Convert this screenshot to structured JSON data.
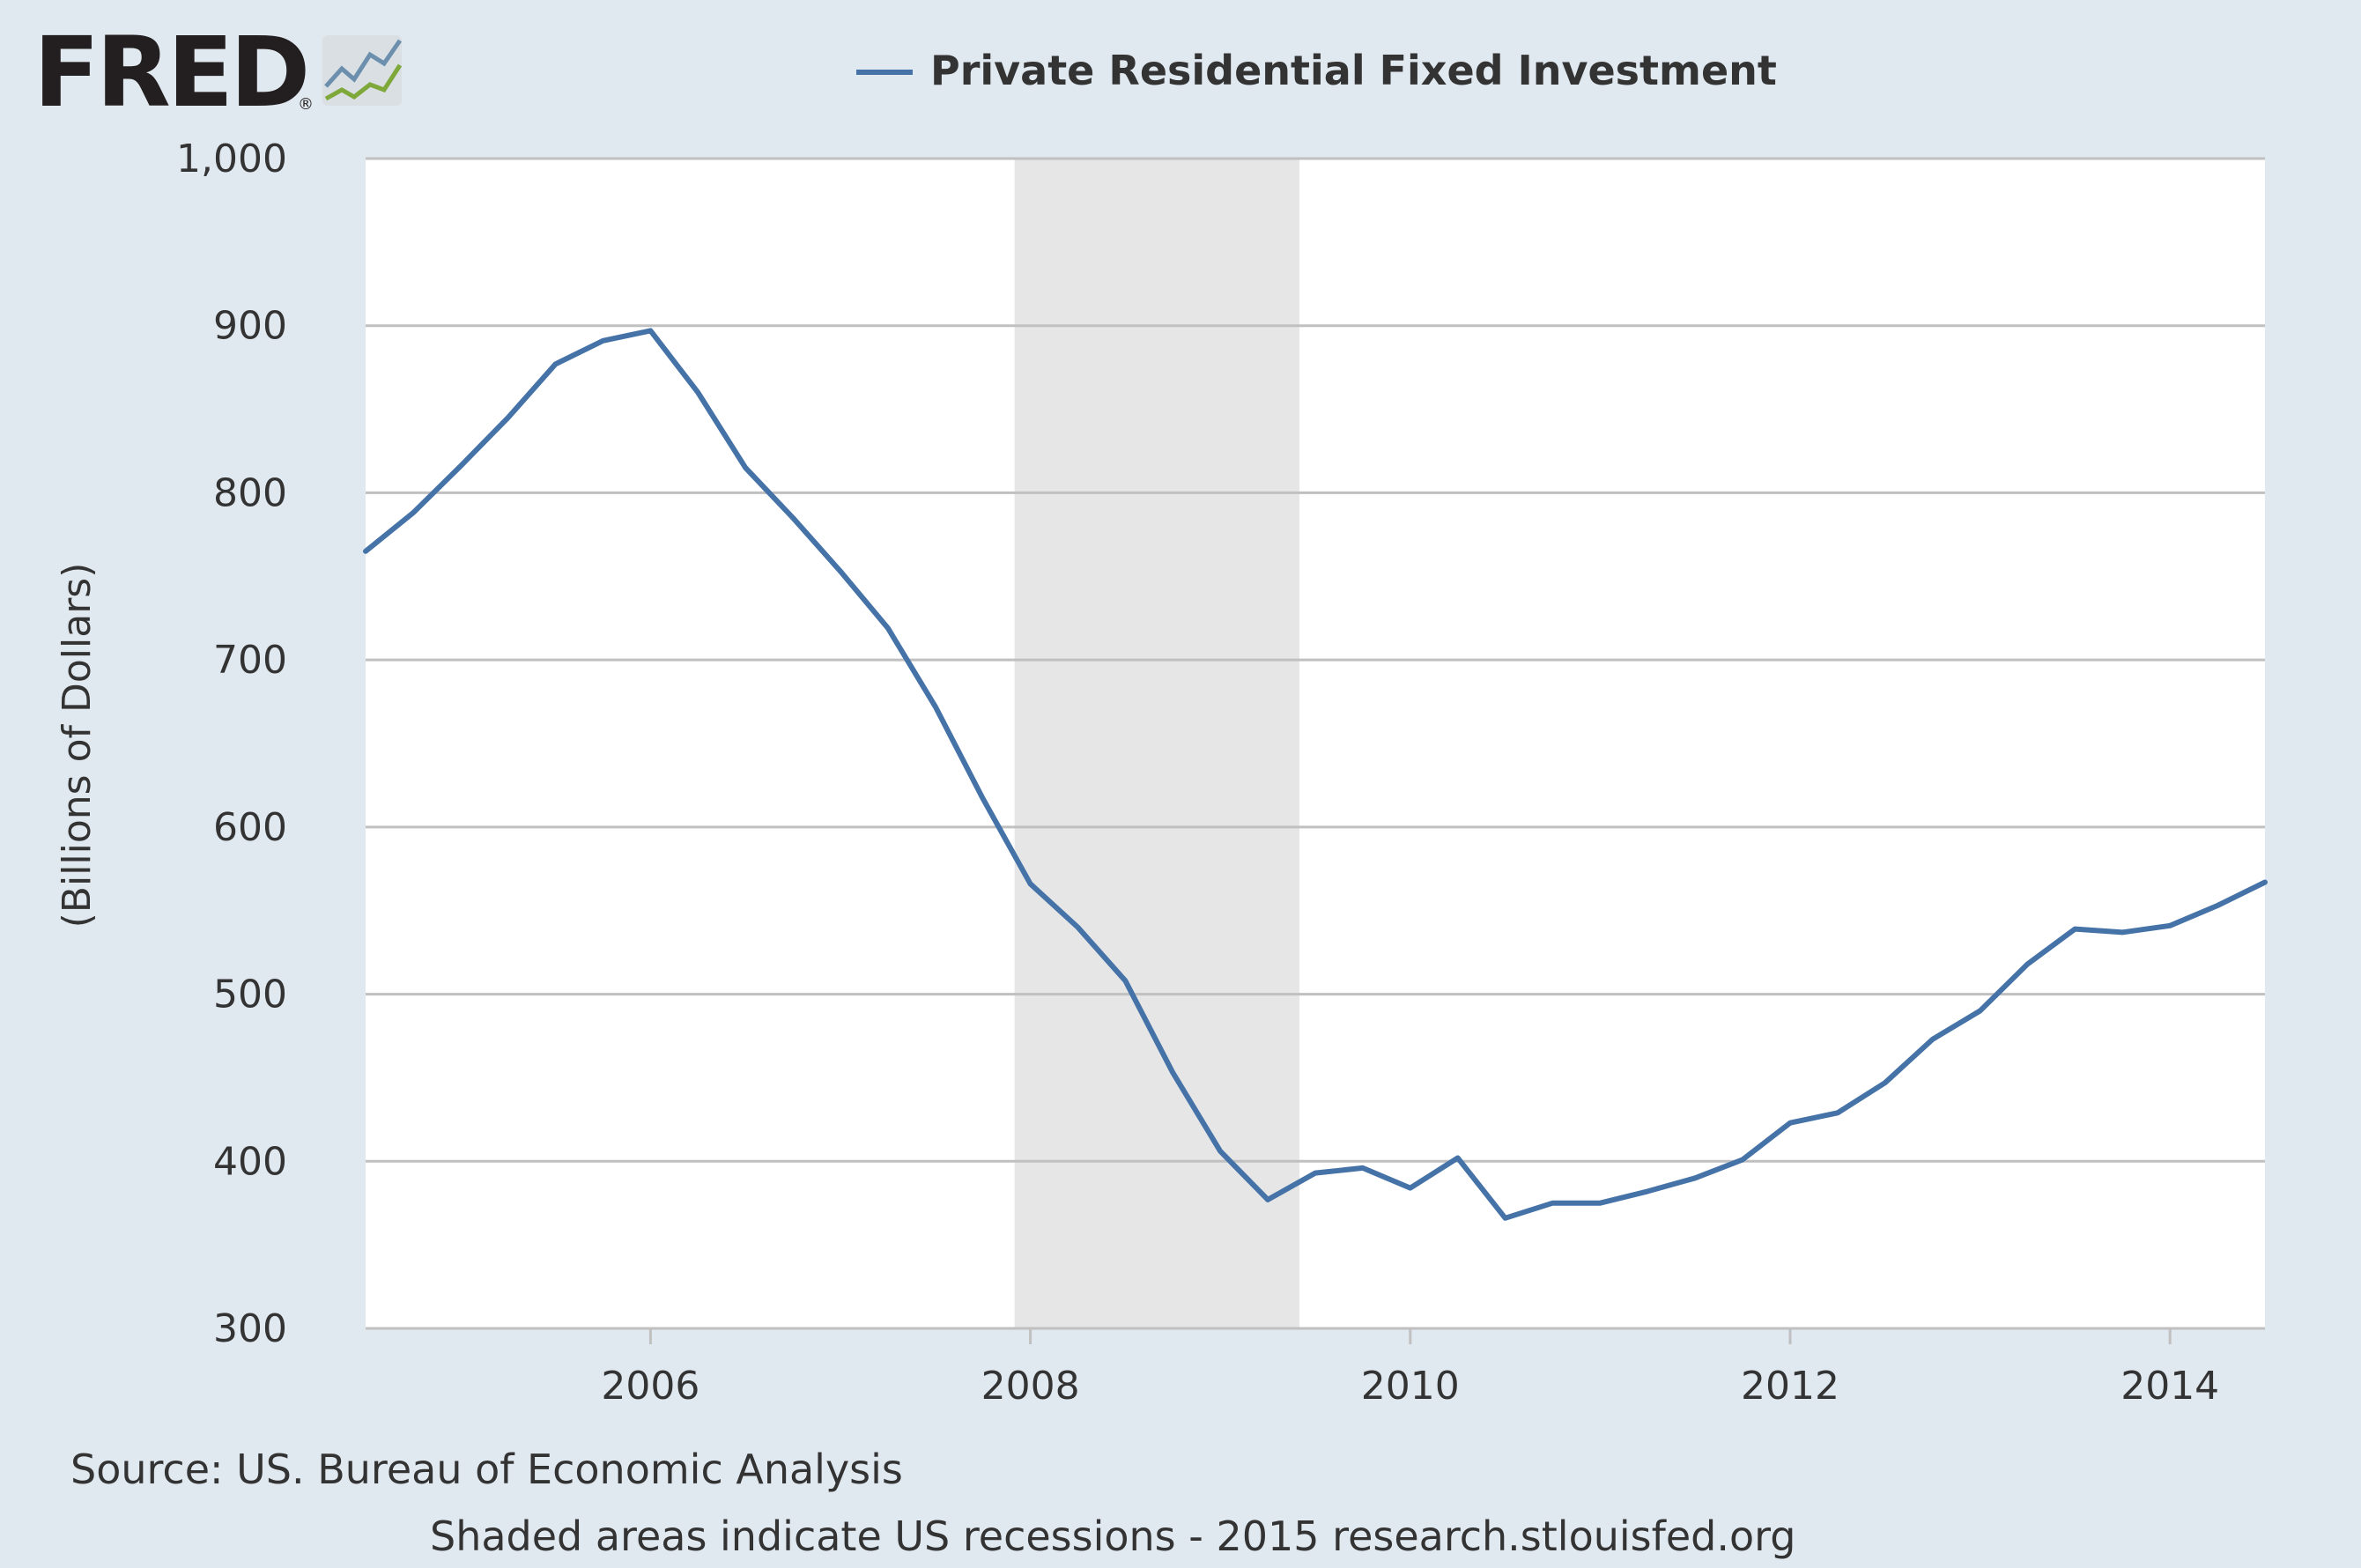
{
  "logo": {
    "text": "FRED",
    "reg": "®"
  },
  "chart_data": {
    "type": "line",
    "title": "",
    "xlabel": "",
    "ylabel": "(Billions of Dollars)",
    "ylim": [
      300,
      1000
    ],
    "xlim": [
      "2004-07-01",
      "2014-07-01"
    ],
    "y_ticks": [
      "300",
      "400",
      "500",
      "600",
      "700",
      "800",
      "900",
      "1,000"
    ],
    "x_ticks": [
      "2006",
      "2008",
      "2010",
      "2012",
      "2014"
    ],
    "grid": true,
    "legend_position": "top-center",
    "recession_shading": [
      {
        "start": "2007-12-01",
        "end": "2009-06-01"
      }
    ],
    "series": [
      {
        "name": "Private Residential Fixed Investment",
        "color": "#4572a7",
        "x": [
          "2004-07-01",
          "2004-10-01",
          "2005-01-01",
          "2005-04-01",
          "2005-07-01",
          "2005-10-01",
          "2006-01-01",
          "2006-04-01",
          "2006-07-01",
          "2006-10-01",
          "2007-01-01",
          "2007-04-01",
          "2007-07-01",
          "2007-10-01",
          "2008-01-01",
          "2008-04-01",
          "2008-07-01",
          "2008-10-01",
          "2009-01-01",
          "2009-04-01",
          "2009-07-01",
          "2009-10-01",
          "2010-01-01",
          "2010-04-01",
          "2010-07-01",
          "2010-10-01",
          "2011-01-01",
          "2011-04-01",
          "2011-07-01",
          "2011-10-01",
          "2012-01-01",
          "2012-04-01",
          "2012-07-01",
          "2012-10-01",
          "2013-01-01",
          "2013-04-01",
          "2013-07-01",
          "2013-10-01",
          "2014-01-01",
          "2014-04-01",
          "2014-07-01"
        ],
        "values": [
          765,
          788,
          816,
          845,
          877,
          891,
          897,
          860,
          815,
          785,
          753,
          719,
          672,
          617,
          566,
          540,
          508,
          453,
          406,
          377,
          393,
          396,
          384,
          402,
          366,
          375,
          375,
          382,
          390,
          401,
          423,
          429,
          447,
          473,
          490,
          518,
          539,
          537,
          541,
          553,
          567
        ]
      }
    ]
  },
  "footer": {
    "source": "Source: US. Bureau of Economic Analysis",
    "note": "Shaded areas indicate US recessions - 2015 research.stlouisfed.org"
  },
  "colors": {
    "background": "#e1e9f0",
    "plot_background": "#ffffff",
    "gridline": "#c0c0c0",
    "recession": "#e6e6e6",
    "series": "#4572a7"
  }
}
